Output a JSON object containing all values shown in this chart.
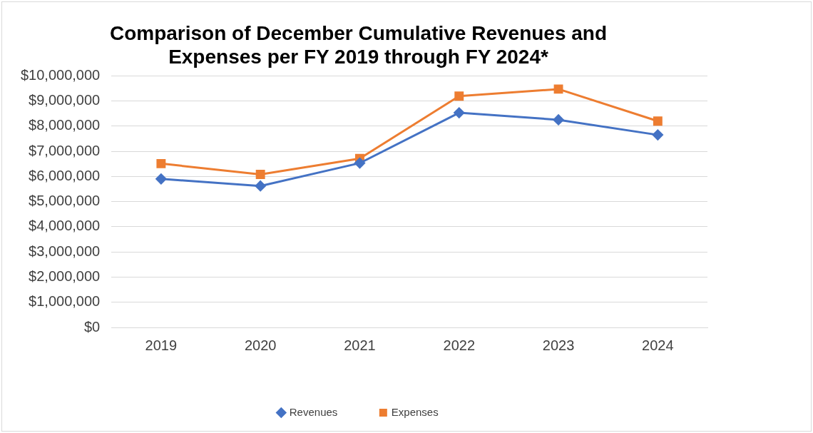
{
  "chart_data": {
    "type": "line",
    "title": "Comparison of December Cumulative Revenues and Expenses per FY 2019 through FY 2024*",
    "categories": [
      "2019",
      "2020",
      "2021",
      "2022",
      "2023",
      "2024"
    ],
    "series": [
      {
        "name": "Revenues",
        "color": "#4472c4",
        "marker": "diamond",
        "values": [
          5900000,
          5620000,
          6530000,
          8530000,
          8250000,
          7650000
        ]
      },
      {
        "name": "Expenses",
        "color": "#ed7d31",
        "marker": "square",
        "values": [
          6510000,
          6080000,
          6710000,
          9190000,
          9470000,
          8200000
        ]
      }
    ],
    "ylim": [
      0,
      10000000
    ],
    "yticks": [
      {
        "value": 0,
        "label": "$0"
      },
      {
        "value": 1000000,
        "label": "$1,000,000"
      },
      {
        "value": 2000000,
        "label": "$2,000,000"
      },
      {
        "value": 3000000,
        "label": "$3,000,000"
      },
      {
        "value": 4000000,
        "label": "$4,000,000"
      },
      {
        "value": 5000000,
        "label": "$5,000,000"
      },
      {
        "value": 6000000,
        "label": "$6,000,000"
      },
      {
        "value": 7000000,
        "label": "$7,000,000"
      },
      {
        "value": 8000000,
        "label": "$8,000,000"
      },
      {
        "value": 9000000,
        "label": "$9,000,000"
      },
      {
        "value": 10000000,
        "label": "$10,000,000"
      }
    ],
    "grid": "y",
    "legend": "bottom",
    "line_style": "solid"
  }
}
